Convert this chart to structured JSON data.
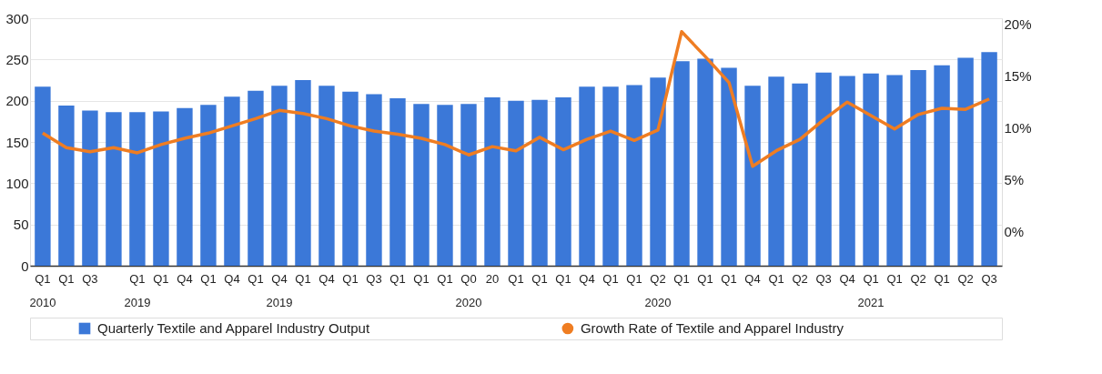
{
  "chart_data": {
    "type": "bar",
    "categories": [
      "Q1\n2010",
      "Q1",
      "Q3",
      null,
      "Q1\n2019",
      "Q1",
      "Q4",
      "Q1",
      "Q4",
      "Q1",
      "Q4\n2019",
      "Q1",
      "Q4",
      "Q1",
      "Q3",
      "Q1",
      "Q1",
      "Q1",
      "Q0\n2020",
      "20",
      "Q1",
      "Q1",
      "Q1",
      "Q4",
      "Q1",
      "Q1",
      "Q2\n2020",
      "Q1",
      "Q1",
      "Q1",
      "Q4",
      "Q1",
      "Q2",
      "Q3",
      "Q4",
      "Q1\n2021",
      "Q1",
      "Q2",
      "Q1",
      "Q2",
      "Q3"
    ],
    "series": [
      {
        "name": "Quarterly Textile and Apparel Industry Output",
        "color": "#3b78d8",
        "values": [
          217,
          194,
          188,
          186,
          186,
          187,
          191,
          195,
          205,
          212,
          218,
          225,
          218,
          211,
          208,
          203,
          196,
          195,
          196,
          204,
          200,
          201,
          204,
          217,
          217,
          219,
          228,
          248,
          251,
          240,
          218,
          229,
          221,
          234,
          230,
          233,
          231,
          237,
          243,
          252,
          259
        ]
      },
      {
        "name": "Growth Rate of Textile and Apparel Industry",
        "type": "line",
        "axis": "y2",
        "color": "#ef7d22",
        "values": [
          9.5,
          8.1,
          7.7,
          8.1,
          7.6,
          8.4,
          9.0,
          9.5,
          10.2,
          10.9,
          11.7,
          11.4,
          10.9,
          10.2,
          9.7,
          9.4,
          9.0,
          8.4,
          7.4,
          8.2,
          7.8,
          9.1,
          7.9,
          8.9,
          9.7,
          8.8,
          9.8,
          19.3,
          16.9,
          14.4,
          6.3,
          7.8,
          8.9,
          10.8,
          12.5,
          11.2,
          9.9,
          11.3,
          11.9,
          11.8,
          12.8
        ]
      }
    ],
    "ylim": [
      0,
      300
    ],
    "yticks": [
      0,
      50,
      100,
      150,
      200,
      250,
      300
    ],
    "y2lim": [
      -3.3,
      20.6
    ],
    "y2ticks": [
      {
        "value": 0,
        "label": "0%"
      },
      {
        "value": 5,
        "label": "5%"
      },
      {
        "value": 10,
        "label": "10%"
      },
      {
        "value": 15,
        "label": "15%"
      },
      {
        "value": 20,
        "label": "20%"
      }
    ],
    "grid": "y",
    "legend": "bottom",
    "marker": "none",
    "line_style": "solid"
  }
}
